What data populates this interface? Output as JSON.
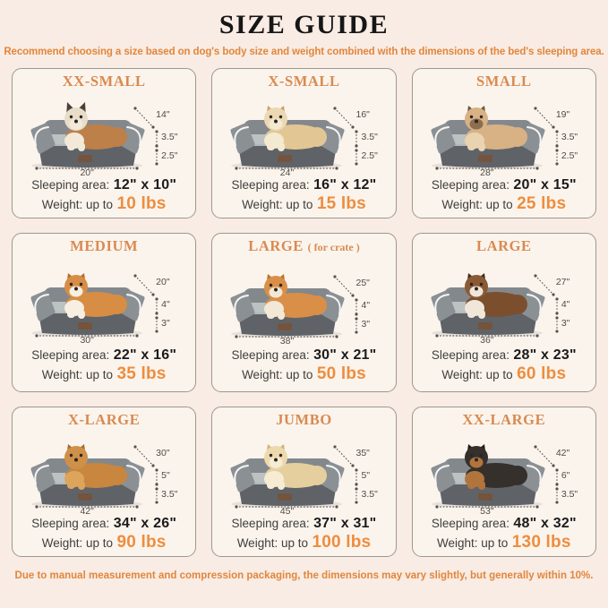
{
  "header": {
    "title": "SIZE GUIDE",
    "subtitle": "Recommend choosing a size based on dog's body size and weight combined with the dimensions of the bed's sleeping area."
  },
  "footer": {
    "note": "Due to manual measurement and compression packaging, the dimensions may vary slightly, but generally within 10%."
  },
  "labels": {
    "sleeping_area": "Sleeping area:",
    "weight_prefix": "Weight: up to"
  },
  "colors": {
    "page_background": "#f8ece4",
    "card_background": "#fbf4ed",
    "card_border": "#9b9890",
    "size_title_orange": "#d98a50",
    "note_orange": "#e2863c",
    "weight_value_orange": "#ee8d3e",
    "body_text": "#3f3e3b",
    "dimension_text": "#4f4b45",
    "bed_gray": "#8b9094"
  },
  "cards": [
    {
      "name": "XX-SMALL",
      "suffix": "",
      "dims": {
        "length": "14\"",
        "bolster": "3.5\"",
        "base": "2.5\"",
        "width": "20\""
      },
      "sleeping": "12\" x 10\"",
      "weight": "10 lbs",
      "animal": {
        "kind": "cat",
        "body": "#bd8048",
        "head": "#e9ddc9",
        "chest": "#f2e9d8",
        "ear": "#4b4038",
        "muzzle": "#f2e9d8"
      }
    },
    {
      "name": "X-SMALL",
      "suffix": "",
      "dims": {
        "length": "16\"",
        "bolster": "3.5\"",
        "base": "2.5\"",
        "width": "24\""
      },
      "sleeping": "16\" x 12\"",
      "weight": "15 lbs",
      "animal": {
        "kind": "dog",
        "body": "#e2c694",
        "head": "#ecd9b4",
        "chest": "#f4ead2",
        "ear": "#caa26a",
        "muzzle": "#f4ead2"
      }
    },
    {
      "name": "SMALL",
      "suffix": "",
      "dims": {
        "length": "19\"",
        "bolster": "3.5\"",
        "base": "2.5\"",
        "width": "28\""
      },
      "sleeping": "20\" x 15\"",
      "weight": "25 lbs",
      "animal": {
        "kind": "dog",
        "body": "#d8b184",
        "head": "#d8b184",
        "chest": "#e9d3b0",
        "ear": "#6f5538",
        "muzzle": "#8a6f50"
      }
    },
    {
      "name": "MEDIUM",
      "suffix": "",
      "dims": {
        "length": "20\"",
        "bolster": "4\"",
        "base": "3\"",
        "width": "30\""
      },
      "sleeping": "22\" x 16\"",
      "weight": "35 lbs",
      "animal": {
        "kind": "dog",
        "body": "#d78d44",
        "head": "#d78d44",
        "chest": "#f6efe2",
        "ear": "#b06f2e",
        "muzzle": "#f6efe2"
      }
    },
    {
      "name": "LARGE",
      "suffix": "( for crate )",
      "dims": {
        "length": "25\"",
        "bolster": "4\"",
        "base": "3\"",
        "width": "38\""
      },
      "sleeping": "30\" x 21\"",
      "weight": "50 lbs",
      "animal": {
        "kind": "dog",
        "body": "#d98f48",
        "head": "#d98f48",
        "chest": "#f3e8d5",
        "ear": "#b9712c",
        "muzzle": "#f3e8d5"
      }
    },
    {
      "name": "LARGE",
      "suffix": "",
      "dims": {
        "length": "27\"",
        "bolster": "4\"",
        "base": "3\"",
        "width": "36\""
      },
      "sleeping": "28\" x 23\"",
      "weight": "60 lbs",
      "animal": {
        "kind": "dog",
        "body": "#7b4f2e",
        "head": "#8a5a34",
        "chest": "#f1e7d8",
        "ear": "#3f2d1e",
        "muzzle": "#f1e7d8"
      }
    },
    {
      "name": "X-LARGE",
      "suffix": "",
      "dims": {
        "length": "30\"",
        "bolster": "5\"",
        "base": "3.5\"",
        "width": "42\""
      },
      "sleeping": "34\" x 26\"",
      "weight": "90 lbs",
      "animal": {
        "kind": "dog",
        "body": "#c8863e",
        "head": "#cf9049",
        "chest": "#dda55c",
        "ear": "#a86c2c",
        "muzzle": "#cf9049"
      }
    },
    {
      "name": "JUMBO",
      "suffix": "",
      "dims": {
        "length": "35\"",
        "bolster": "5\"",
        "base": "3.5\"",
        "width": "45\""
      },
      "sleeping": "37\" x 31\"",
      "weight": "100 lbs",
      "animal": {
        "kind": "dog",
        "body": "#e6cf9f",
        "head": "#edd9ad",
        "chest": "#f6ecd4",
        "ear": "#d3b276",
        "muzzle": "#f6ecd4"
      }
    },
    {
      "name": "XX-LARGE",
      "suffix": "",
      "dims": {
        "length": "42\"",
        "bolster": "6\"",
        "base": "3.5\"",
        "width": "53\""
      },
      "sleeping": "48\" x 32\"",
      "weight": "130 lbs",
      "animal": {
        "kind": "dog",
        "body": "#35302c",
        "head": "#35302c",
        "chest": "#b1743c",
        "ear": "#211d1a",
        "muzzle": "#b1743c"
      }
    }
  ]
}
